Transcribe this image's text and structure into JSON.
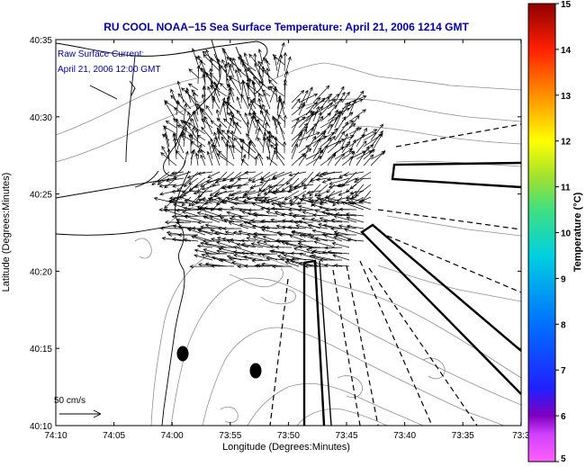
{
  "title": "RU COOL  NOAA−15  Sea Surface Temperature:  April 21, 2006 1214 GMT",
  "annotation": {
    "line1": "Raw Surface Current:",
    "line2": "April 21, 2006 12:00 GMT"
  },
  "axes": {
    "xlabel": "Longitude (Degrees:Minutes)",
    "ylabel": "Latitude (Degrees:Minutes)",
    "xticks": [
      "74:10",
      "74:05",
      "74:00",
      "73:55",
      "73:50",
      "73:45",
      "73:40",
      "73:35",
      "73:3"
    ],
    "yticks": [
      "40:35",
      "40:30",
      "40:25",
      "40:20",
      "40:15",
      "40:10"
    ]
  },
  "colorbar": {
    "label": "Temperature (°C)",
    "ticks": [
      "15",
      "14",
      "13",
      "12",
      "11",
      "10",
      "9",
      "8",
      "7",
      "6",
      "5"
    ],
    "min": 5,
    "max": 15
  },
  "scale": {
    "label": "50 cm/s"
  },
  "colors": {
    "title": "#0000b0",
    "land_outline": "#000000",
    "bathymetry": "#909090",
    "vectors": "#000000"
  }
}
